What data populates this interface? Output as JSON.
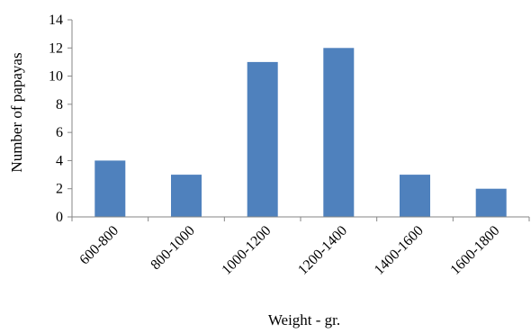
{
  "chart_data": {
    "type": "bar",
    "title": "",
    "xlabel": "Weight - gr.",
    "ylabel": "Number of papayas",
    "categories": [
      "600-800",
      "800-1000",
      "1000-1200",
      "1200-1400",
      "1400-1600",
      "1600-1800"
    ],
    "values": [
      4,
      3,
      11,
      12,
      3,
      2
    ],
    "ylim": [
      0,
      14
    ],
    "yticks": [
      "0",
      "2",
      "4",
      "6",
      "8",
      "10",
      "12",
      "14"
    ],
    "grid": false,
    "legend": "none",
    "bar_color": "#4f81bd",
    "axis_color": "#868686"
  }
}
